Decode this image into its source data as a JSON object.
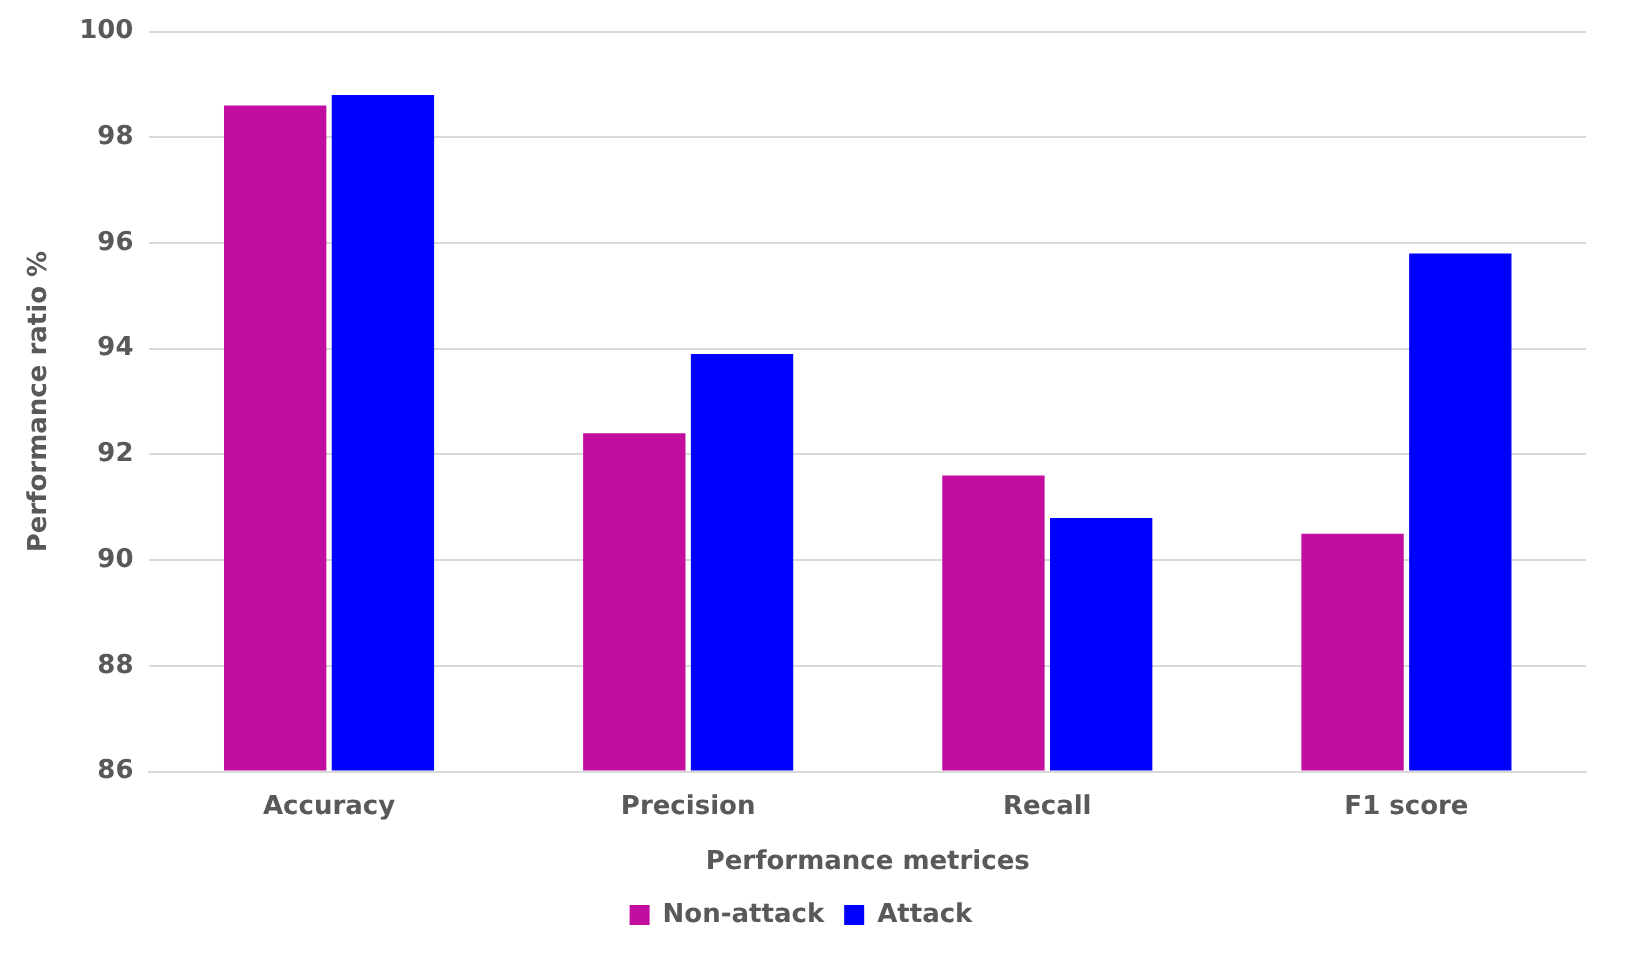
{
  "chart_data": {
    "type": "bar",
    "xlabel": "Performance metrices",
    "ylabel": "Performance ratio %",
    "categories": [
      "Accuracy",
      "Precision",
      "Recall",
      "F1 score"
    ],
    "series": [
      {
        "name": "Non-attack",
        "color": "#c20ea0",
        "values": [
          98.6,
          92.4,
          91.6,
          90.5
        ]
      },
      {
        "name": "Attack",
        "color": "#0000ff",
        "values": [
          98.8,
          93.9,
          90.8,
          95.8
        ]
      }
    ],
    "ylim": [
      86,
      100
    ],
    "yticks": [
      86,
      88,
      90,
      92,
      94,
      96,
      98,
      100
    ],
    "grid": "y",
    "legend": "bottom"
  }
}
